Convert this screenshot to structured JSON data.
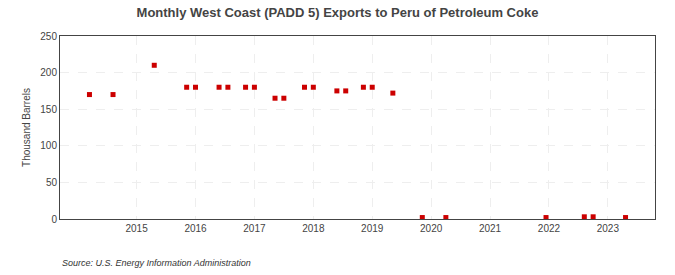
{
  "chart_data": {
    "type": "scatter",
    "title": "Monthly West Coast (PADD 5) Exports to Peru of Petroleum Coke",
    "ylabel": "Thousand Barrels",
    "annotation": "Source: U.S. Energy Information Administration",
    "x": [
      2014.2,
      2014.6,
      2015.3,
      2015.85,
      2016.0,
      2016.4,
      2016.55,
      2016.85,
      2017.0,
      2017.35,
      2017.5,
      2017.85,
      2018.0,
      2018.4,
      2018.55,
      2018.85,
      2019.0,
      2019.35,
      2019.85,
      2020.25,
      2021.95,
      2022.6,
      2022.75,
      2023.3
    ],
    "values": [
      170,
      170,
      210,
      180,
      180,
      180,
      180,
      180,
      180,
      165,
      165,
      180,
      180,
      175,
      175,
      180,
      180,
      172,
      2,
      2,
      2,
      3,
      3,
      2
    ],
    "color": "#cc0000",
    "marker": "square",
    "xlim": [
      2013.7,
      2023.8
    ],
    "ylim": [
      0,
      250
    ],
    "xticks": [
      2015,
      2016,
      2017,
      2018,
      2019,
      2020,
      2021,
      2022,
      2023
    ],
    "yticks": [
      0,
      50,
      100,
      150,
      200,
      250
    ],
    "grid": true
  }
}
